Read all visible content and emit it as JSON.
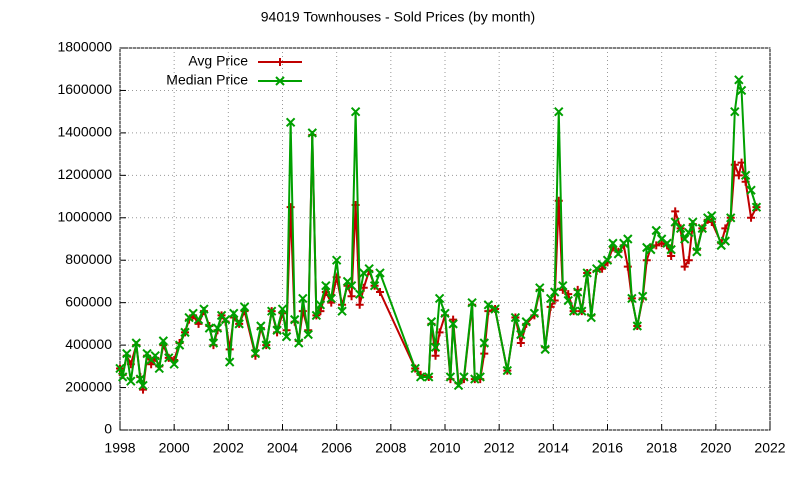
{
  "chart_data": {
    "type": "line",
    "title": "94019 Townhouses - Sold Prices (by month)",
    "x": [
      1998.0,
      1998.1,
      1998.25,
      1998.4,
      1998.6,
      1998.75,
      1998.85,
      1999.0,
      1999.15,
      1999.3,
      1999.45,
      1999.6,
      1999.8,
      2000.0,
      2000.2,
      2000.4,
      2000.55,
      2000.7,
      2000.9,
      2001.1,
      2001.3,
      2001.45,
      2001.6,
      2001.75,
      2001.9,
      2002.05,
      2002.2,
      2002.4,
      2002.6,
      2003.0,
      2003.2,
      2003.4,
      2003.6,
      2003.8,
      2004.0,
      2004.15,
      2004.3,
      2004.45,
      2004.6,
      2004.75,
      2004.95,
      2005.1,
      2005.25,
      2005.4,
      2005.6,
      2005.8,
      2006.0,
      2006.2,
      2006.4,
      2006.55,
      2006.7,
      2006.85,
      2007.0,
      2007.2,
      2007.4,
      2007.6,
      2008.9,
      2009.1,
      2009.4,
      2009.5,
      2009.65,
      2009.8,
      2010.0,
      2010.2,
      2010.3,
      2010.5,
      2010.7,
      2011.0,
      2011.1,
      2011.3,
      2011.45,
      2011.6,
      2011.85,
      2012.3,
      2012.6,
      2012.8,
      2013.0,
      2013.3,
      2013.5,
      2013.7,
      2013.9,
      2014.05,
      2014.2,
      2014.35,
      2014.55,
      2014.75,
      2014.9,
      2015.05,
      2015.25,
      2015.4,
      2015.6,
      2015.8,
      2016.0,
      2016.2,
      2016.4,
      2016.6,
      2016.75,
      2016.9,
      2017.1,
      2017.3,
      2017.45,
      2017.6,
      2017.8,
      2018.0,
      2018.2,
      2018.35,
      2018.5,
      2018.7,
      2018.85,
      2019.0,
      2019.15,
      2019.3,
      2019.5,
      2019.7,
      2019.85,
      2020.2,
      2020.35,
      2020.55,
      2020.7,
      2020.85,
      2020.95,
      2021.1,
      2021.3,
      2021.5
    ],
    "series": [
      {
        "name": "Avg Price",
        "color": "#c00000",
        "marker": "plus",
        "values": [
          290000,
          260000,
          350000,
          310000,
          400000,
          250000,
          190000,
          350000,
          310000,
          340000,
          300000,
          400000,
          340000,
          330000,
          410000,
          460000,
          520000,
          540000,
          500000,
          560000,
          490000,
          400000,
          470000,
          540000,
          510000,
          380000,
          530000,
          500000,
          560000,
          350000,
          480000,
          400000,
          560000,
          460000,
          550000,
          470000,
          1050000,
          510000,
          420000,
          560000,
          470000,
          1390000,
          540000,
          560000,
          650000,
          600000,
          720000,
          590000,
          680000,
          630000,
          1060000,
          590000,
          670000,
          750000,
          680000,
          650000,
          290000,
          260000,
          250000,
          500000,
          350000,
          460000,
          540000,
          240000,
          520000,
          220000,
          240000,
          590000,
          240000,
          240000,
          360000,
          560000,
          570000,
          280000,
          530000,
          410000,
          500000,
          540000,
          660000,
          390000,
          580000,
          610000,
          1080000,
          660000,
          640000,
          560000,
          660000,
          560000,
          740000,
          540000,
          750000,
          760000,
          790000,
          860000,
          840000,
          870000,
          770000,
          620000,
          490000,
          620000,
          800000,
          860000,
          870000,
          880000,
          870000,
          820000,
          1030000,
          950000,
          770000,
          800000,
          970000,
          850000,
          950000,
          990000,
          980000,
          880000,
          950000,
          1000000,
          1250000,
          1200000,
          1260000,
          1170000,
          1000000,
          1050000
        ]
      },
      {
        "name": "Median Price",
        "color": "#00a000",
        "marker": "cross",
        "values": [
          290000,
          250000,
          360000,
          230000,
          410000,
          240000,
          210000,
          360000,
          330000,
          350000,
          290000,
          420000,
          340000,
          310000,
          400000,
          460000,
          530000,
          550000,
          520000,
          570000,
          480000,
          410000,
          480000,
          540000,
          520000,
          320000,
          550000,
          500000,
          580000,
          360000,
          490000,
          400000,
          560000,
          470000,
          570000,
          440000,
          1450000,
          520000,
          410000,
          620000,
          450000,
          1400000,
          540000,
          590000,
          680000,
          620000,
          800000,
          560000,
          700000,
          680000,
          1500000,
          640000,
          740000,
          760000,
          680000,
          740000,
          290000,
          250000,
          250000,
          510000,
          390000,
          620000,
          550000,
          250000,
          500000,
          210000,
          250000,
          600000,
          240000,
          250000,
          410000,
          590000,
          570000,
          280000,
          530000,
          450000,
          510000,
          550000,
          670000,
          380000,
          620000,
          650000,
          1500000,
          680000,
          610000,
          560000,
          650000,
          560000,
          740000,
          530000,
          760000,
          780000,
          800000,
          880000,
          830000,
          880000,
          900000,
          620000,
          490000,
          630000,
          860000,
          850000,
          940000,
          900000,
          880000,
          850000,
          980000,
          950000,
          900000,
          930000,
          980000,
          840000,
          950000,
          1000000,
          1010000,
          870000,
          890000,
          1000000,
          1500000,
          1650000,
          1600000,
          1200000,
          1130000,
          1050000
        ]
      }
    ],
    "xlim": [
      1998,
      2022
    ],
    "xticks": [
      1998,
      2000,
      2002,
      2004,
      2006,
      2008,
      2010,
      2012,
      2014,
      2016,
      2018,
      2020,
      2022
    ],
    "ylim": [
      0,
      1800000
    ],
    "yticks": [
      0,
      200000,
      400000,
      600000,
      800000,
      1000000,
      1200000,
      1400000,
      1600000,
      1800000
    ],
    "grid": true,
    "legend": "top-left"
  }
}
